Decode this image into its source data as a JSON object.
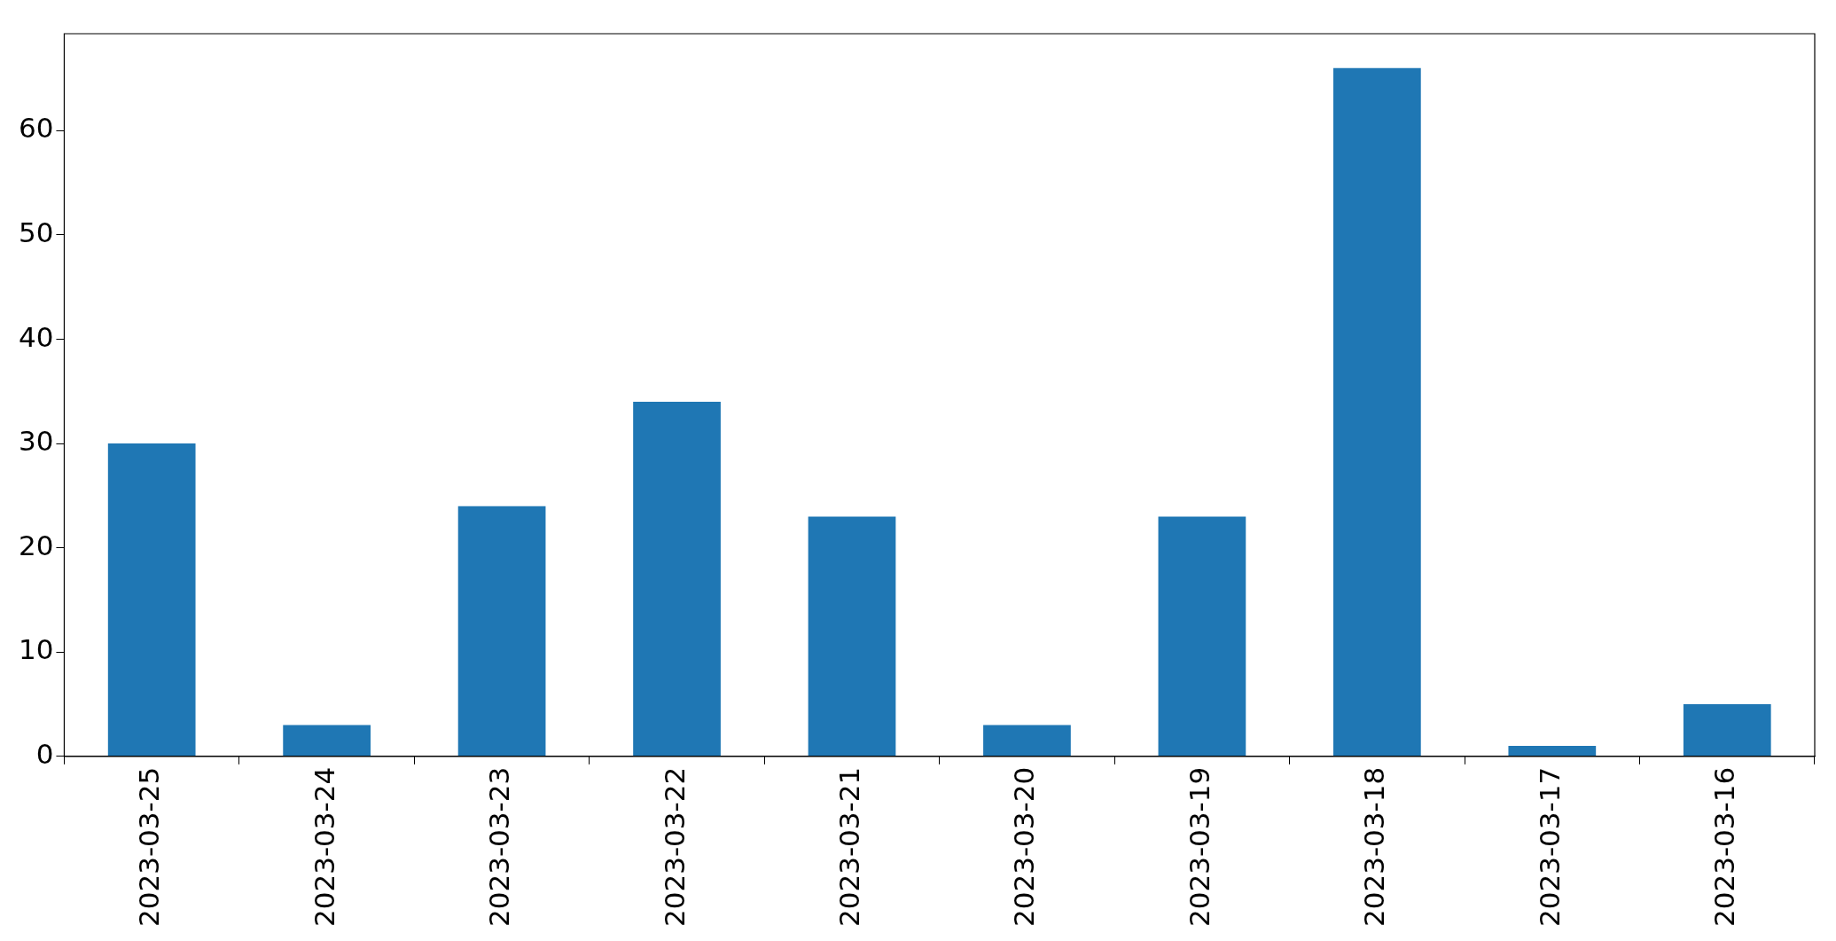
{
  "chart_data": {
    "type": "bar",
    "categories": [
      "2023-03-25",
      "2023-03-24",
      "2023-03-23",
      "2023-03-22",
      "2023-03-21",
      "2023-03-20",
      "2023-03-19",
      "2023-03-18",
      "2023-03-17",
      "2023-03-16"
    ],
    "values": [
      30,
      3,
      24,
      34,
      23,
      3,
      23,
      66,
      1,
      5
    ],
    "color": "#1f77b4",
    "ylim": [
      0,
      69.3
    ],
    "yticks": [
      0,
      10,
      20,
      30,
      40,
      50,
      60
    ],
    "grid": false,
    "legend": false
  }
}
